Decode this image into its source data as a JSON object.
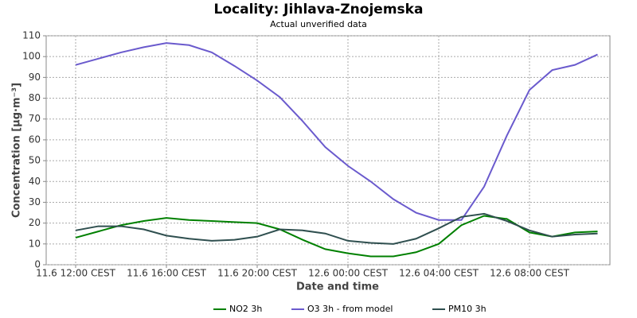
{
  "chart_data": {
    "type": "line",
    "title": "Locality: Jihlava-Znojemska",
    "subtitle": "Actual unverified data",
    "x_label": "Date and time",
    "y_label": "Concentration [µg·m⁻³]",
    "categories": [
      "11.6 12:00 CEST",
      null,
      null,
      null,
      "11.6 16:00 CEST",
      null,
      null,
      null,
      "11.6 20:00 CEST",
      null,
      null,
      null,
      "12.6 00:00 CEST",
      null,
      null,
      null,
      "12.6 04:00 CEST",
      null,
      null,
      null,
      "12.6 08:00 CEST",
      null,
      null,
      null
    ],
    "series": [
      {
        "name": "NO2 3h",
        "color": "#008000",
        "values": [
          13,
          16,
          19,
          21,
          22.5,
          21.5,
          21,
          20.5,
          20,
          17,
          12,
          7.5,
          5.5,
          4,
          4,
          6,
          10,
          19,
          23.5,
          22,
          15.5,
          13.5,
          15.5,
          16
        ]
      },
      {
        "name": "O3 3h - from model",
        "color": "#6a5acd",
        "values": [
          96,
          99,
          102,
          104.5,
          106.5,
          105.5,
          102,
          95.5,
          88.5,
          80.5,
          69,
          56.5,
          47.5,
          40,
          31.5,
          25,
          21.5,
          21.5,
          37.5,
          62,
          84,
          93.5,
          96,
          101
        ]
      },
      {
        "name": "PM10 3h",
        "color": "#2f4f4f",
        "values": [
          16.5,
          18.5,
          18.5,
          17,
          14,
          12.5,
          11.5,
          12,
          13.5,
          17,
          16.5,
          15,
          11.5,
          10.5,
          10,
          12.5,
          17.5,
          23,
          24.5,
          21,
          16.5,
          13.5,
          14.5,
          15
        ]
      }
    ],
    "ylim": [
      0,
      110
    ],
    "yticks": [
      0,
      10,
      20,
      30,
      40,
      50,
      60,
      70,
      80,
      90,
      100,
      110
    ],
    "grid": true
  }
}
